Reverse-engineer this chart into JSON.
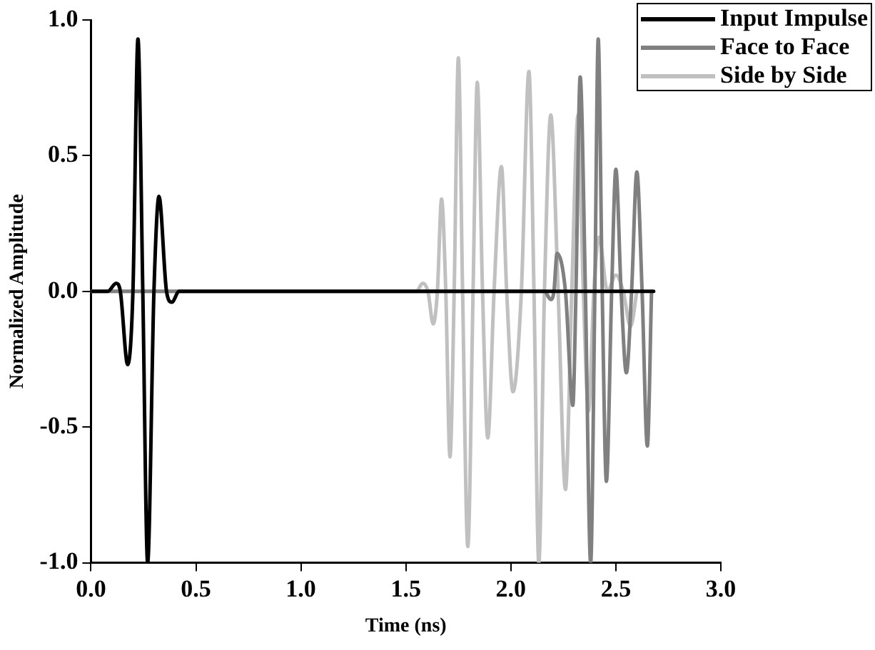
{
  "chart_data": {
    "type": "line",
    "xlabel": "Time (ns)",
    "ylabel": "Normalized Amplitude",
    "xlim": [
      0,
      3
    ],
    "xticks": [
      {
        "value": 0,
        "label": "0.0"
      },
      {
        "value": 0.5,
        "label": "0.5"
      },
      {
        "value": 1,
        "label": "1.0"
      },
      {
        "value": 1.5,
        "label": "1.5"
      },
      {
        "value": 2,
        "label": "2.0"
      },
      {
        "value": 2.5,
        "label": "2.5"
      },
      {
        "value": 3,
        "label": "3.0"
      }
    ],
    "ylim": [
      -1,
      1
    ],
    "yticks": [
      {
        "value": -1,
        "label": "-1.0"
      },
      {
        "value": -0.5,
        "label": "-0.5"
      },
      {
        "value": 0,
        "label": "0.0"
      },
      {
        "value": 0.5,
        "label": "0.5"
      },
      {
        "value": 1,
        "label": "1.0"
      }
    ],
    "grid": false,
    "legend": "top right",
    "marker": "none",
    "line_style": "solid",
    "series": [
      {
        "name": "Input Impulse",
        "color": "#000000",
        "x": [
          0,
          0.08,
          0.12,
          0.14,
          0.175,
          0.2,
          0.224,
          0.247,
          0.27,
          0.3,
          0.324,
          0.36,
          0.385,
          0.42,
          1.0,
          2.0,
          2.68
        ],
        "values": [
          0,
          0,
          0.03,
          0,
          -0.27,
          0,
          0.93,
          0,
          -1.0,
          0,
          0.35,
          0,
          -0.04,
          0,
          0,
          0,
          0
        ]
      },
      {
        "name": "Face to Face",
        "color": "#808080",
        "x": [
          0,
          1.0,
          2.1,
          2.16,
          2.19,
          2.205,
          2.22,
          2.26,
          2.295,
          2.31,
          2.33,
          2.355,
          2.38,
          2.4,
          2.416,
          2.435,
          2.455,
          2.48,
          2.5,
          2.525,
          2.55,
          2.575,
          2.6,
          2.625,
          2.65,
          2.67
        ],
        "values": [
          0,
          0,
          0,
          0,
          -0.03,
          0,
          0.14,
          0,
          -0.42,
          0,
          0.79,
          0,
          -1.0,
          0,
          0.93,
          0,
          -0.7,
          0,
          0.45,
          0,
          -0.3,
          0,
          0.44,
          0,
          -0.57,
          0
        ]
      },
      {
        "name": "Side by Side",
        "color": "#c0c0c0",
        "x": [
          0,
          1.0,
          1.55,
          1.58,
          1.605,
          1.63,
          1.65,
          1.67,
          1.69,
          1.71,
          1.73,
          1.75,
          1.77,
          1.795,
          1.82,
          1.84,
          1.865,
          1.89,
          1.92,
          1.955,
          1.98,
          2.01,
          2.05,
          2.086,
          2.11,
          2.133,
          2.16,
          2.19,
          2.225,
          2.26,
          2.29,
          2.32,
          2.345,
          2.37,
          2.395,
          2.42,
          2.46,
          2.5,
          2.535,
          2.57,
          2.6
        ],
        "values": [
          0,
          0,
          0,
          0.03,
          0,
          -0.12,
          0,
          0.34,
          0,
          -0.61,
          0,
          0.86,
          0,
          -0.94,
          0,
          0.77,
          0,
          -0.54,
          0,
          0.46,
          0,
          -0.37,
          0,
          0.81,
          0,
          -1.0,
          0,
          0.65,
          0,
          -0.73,
          0,
          0.65,
          0,
          -0.44,
          0,
          0.2,
          0,
          0.06,
          0,
          -0.13,
          0
        ]
      }
    ]
  }
}
